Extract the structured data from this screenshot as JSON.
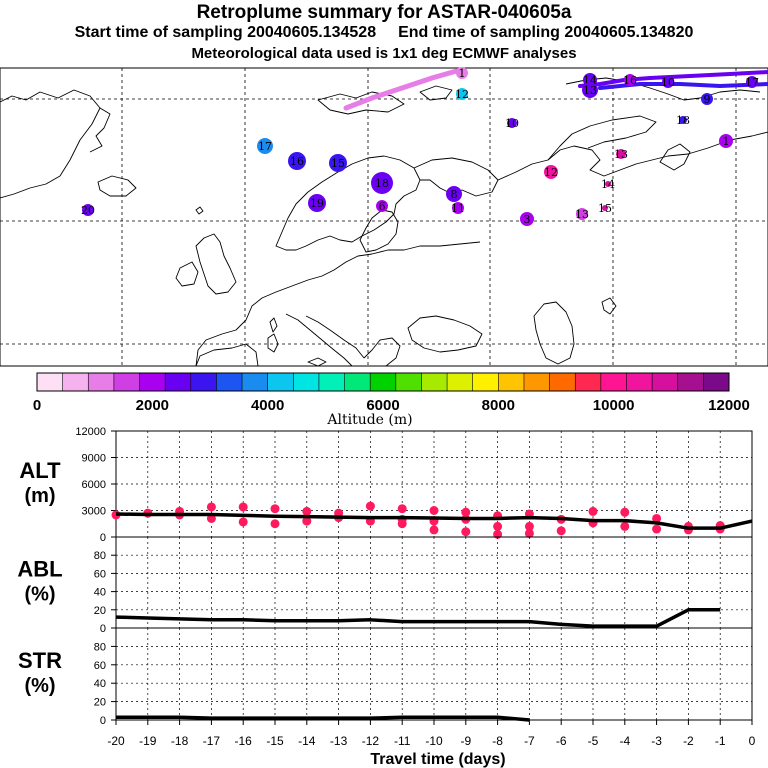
{
  "header": {
    "title": "Retroplume summary for ASTAR-040605a",
    "start_label": "Start time of sampling 20040605.134528",
    "end_label": "End time of sampling 20040605.134820",
    "met_label": "Meteorological data used is 1x1 deg ECMWF analyses"
  },
  "colors": {
    "altitude_scale": [
      "#fde0f6",
      "#f5b2ee",
      "#e77de6",
      "#cf3fe3",
      "#a900f0",
      "#6a00f2",
      "#3a15f0",
      "#1c55f0",
      "#1a8cf0",
      "#0cc6f0",
      "#00e4e2",
      "#00f0b8",
      "#00e878",
      "#00d200",
      "#50e000",
      "#a6ea00",
      "#dcf000",
      "#fff000",
      "#ffc400",
      "#ff9800",
      "#ff6a00",
      "#ff2850",
      "#ff1493",
      "#f0149e",
      "#d6109e",
      "#a61090",
      "#7a0a88"
    ],
    "marker": "#ff1a5e",
    "line": "#000000"
  },
  "colorbar": {
    "tick_labels": [
      "0",
      "2000",
      "4000",
      "6000",
      "8000",
      "10000",
      "12000"
    ],
    "label": "Altitude (m)"
  },
  "map": {
    "clusters": [
      {
        "label": "1",
        "altitude_m": 1000
      },
      {
        "label": "12",
        "altitude_m": 4200
      },
      {
        "label": "14",
        "altitude_m": 2600
      },
      {
        "label": "13",
        "altitude_m": 2500
      },
      {
        "label": "16",
        "altitude_m": 2200
      },
      {
        "label": "10",
        "altitude_m": 2400
      },
      {
        "label": "17",
        "altitude_m": 2300
      },
      {
        "label": "9",
        "altitude_m": 3000
      },
      {
        "label": "10",
        "altitude_m": 2400
      },
      {
        "label": "18",
        "altitude_m": 3000
      },
      {
        "label": "17",
        "altitude_m": 3800
      },
      {
        "label": "16",
        "altitude_m": 3000
      },
      {
        "label": "15",
        "altitude_m": 2800
      },
      {
        "label": "18",
        "altitude_m": 2600
      },
      {
        "label": "13",
        "altitude_m": 11000
      },
      {
        "label": "12",
        "altitude_m": 10500
      },
      {
        "label": "19",
        "altitude_m": 2500
      },
      {
        "label": "20",
        "altitude_m": 2500
      },
      {
        "label": "8",
        "altitude_m": 2300
      },
      {
        "label": "11",
        "altitude_m": 2000
      },
      {
        "label": "6",
        "altitude_m": 2100
      },
      {
        "label": "3",
        "altitude_m": 1900
      },
      {
        "label": "13",
        "altitude_m": 1500
      },
      {
        "label": "14",
        "altitude_m": 11000
      },
      {
        "label": "15",
        "altitude_m": 11000
      },
      {
        "label": "1",
        "altitude_m": 1800
      }
    ]
  },
  "chart_data": [
    {
      "type": "line",
      "title": "ALT (m)",
      "ylabel_line1": "ALT",
      "ylabel_line2": "(m)",
      "ylim": [
        0,
        12000
      ],
      "yticks": [
        "12000",
        "9000",
        "6000",
        "3000",
        "0"
      ],
      "x": [
        -20,
        -19,
        -18,
        -17,
        -16,
        -15,
        -14,
        -13,
        -12,
        -11,
        -10,
        -9,
        -8,
        -7,
        -6,
        -5,
        -4,
        -3,
        -2,
        -1,
        0
      ],
      "series": [
        {
          "name": "mean altitude",
          "values": [
            2600,
            2550,
            2550,
            2550,
            2450,
            2350,
            2300,
            2250,
            2200,
            2200,
            2150,
            2100,
            2100,
            2200,
            2100,
            1850,
            1850,
            1600,
            1000,
            1000,
            1800
          ]
        },
        {
          "name": "cluster altitudes",
          "type": "scatter",
          "points": [
            {
              "x": -20,
              "y": 2500
            },
            {
              "x": -19,
              "y": 2700
            },
            {
              "x": -18,
              "y": 2900
            },
            {
              "x": -18,
              "y": 2500
            },
            {
              "x": -17,
              "y": 3400
            },
            {
              "x": -17,
              "y": 2100
            },
            {
              "x": -16,
              "y": 3400
            },
            {
              "x": -16,
              "y": 1700
            },
            {
              "x": -15,
              "y": 3200
            },
            {
              "x": -15,
              "y": 1500
            },
            {
              "x": -14,
              "y": 2900
            },
            {
              "x": -14,
              "y": 1800
            },
            {
              "x": -13,
              "y": 2700
            },
            {
              "x": -13,
              "y": 2200
            },
            {
              "x": -12,
              "y": 3500
            },
            {
              "x": -12,
              "y": 1800
            },
            {
              "x": -11,
              "y": 3200
            },
            {
              "x": -11,
              "y": 1500
            },
            {
              "x": -11,
              "y": 2000
            },
            {
              "x": -10,
              "y": 3000
            },
            {
              "x": -10,
              "y": 1800
            },
            {
              "x": -10,
              "y": 800
            },
            {
              "x": -9,
              "y": 2800
            },
            {
              "x": -9,
              "y": 2000
            },
            {
              "x": -9,
              "y": 600
            },
            {
              "x": -8,
              "y": 2400
            },
            {
              "x": -8,
              "y": 1200
            },
            {
              "x": -8,
              "y": 300
            },
            {
              "x": -7,
              "y": 2600
            },
            {
              "x": -7,
              "y": 1200
            },
            {
              "x": -7,
              "y": 400
            },
            {
              "x": -6,
              "y": 2000
            },
            {
              "x": -6,
              "y": 700
            },
            {
              "x": -5,
              "y": 2900
            },
            {
              "x": -5,
              "y": 1600
            },
            {
              "x": -4,
              "y": 2800
            },
            {
              "x": -4,
              "y": 1200
            },
            {
              "x": -3,
              "y": 2100
            },
            {
              "x": -3,
              "y": 900
            },
            {
              "x": -2,
              "y": 1200
            },
            {
              "x": -2,
              "y": 800
            },
            {
              "x": -1,
              "y": 1300
            },
            {
              "x": -1,
              "y": 900
            }
          ]
        }
      ]
    },
    {
      "type": "line",
      "title": "ABL (%)",
      "ylabel_line1": "ABL",
      "ylabel_line2": "(%)",
      "ylim": [
        0,
        100
      ],
      "yticks": [
        "80",
        "60",
        "40",
        "20",
        "0"
      ],
      "x": [
        -20,
        -19,
        -18,
        -17,
        -16,
        -15,
        -14,
        -13,
        -12,
        -11,
        -10,
        -9,
        -8,
        -7,
        -6,
        -5,
        -4,
        -3,
        -2,
        -1
      ],
      "series": [
        {
          "name": "ABL fraction",
          "values": [
            12,
            11,
            10,
            9,
            9,
            8,
            8,
            8,
            9,
            7,
            7,
            7,
            7,
            7,
            4,
            2,
            2,
            2,
            20,
            20
          ]
        }
      ]
    },
    {
      "type": "line",
      "title": "STR (%)",
      "ylabel_line1": "STR",
      "ylabel_line2": "(%)",
      "ylim": [
        0,
        100
      ],
      "yticks": [
        "80",
        "60",
        "40",
        "20",
        "0"
      ],
      "x": [
        -20,
        -19,
        -18,
        -17,
        -16,
        -15,
        -14,
        -13,
        -12,
        -11,
        -10,
        -9,
        -8,
        -7
      ],
      "series": [
        {
          "name": "STR fraction",
          "values": [
            3,
            3,
            3,
            2,
            2,
            2,
            2,
            2,
            2,
            3,
            3,
            3,
            3,
            0
          ]
        }
      ]
    },
    {
      "type": "axis",
      "xlabel": "Travel time (days)",
      "xticks": [
        "-20",
        "-19",
        "-18",
        "-17",
        "-16",
        "-15",
        "-14",
        "-13",
        "-12",
        "-11",
        "-10",
        "-9",
        "-8",
        "-7",
        "-6",
        "-5",
        "-4",
        "-3",
        "-2",
        "-1",
        "0"
      ]
    }
  ]
}
